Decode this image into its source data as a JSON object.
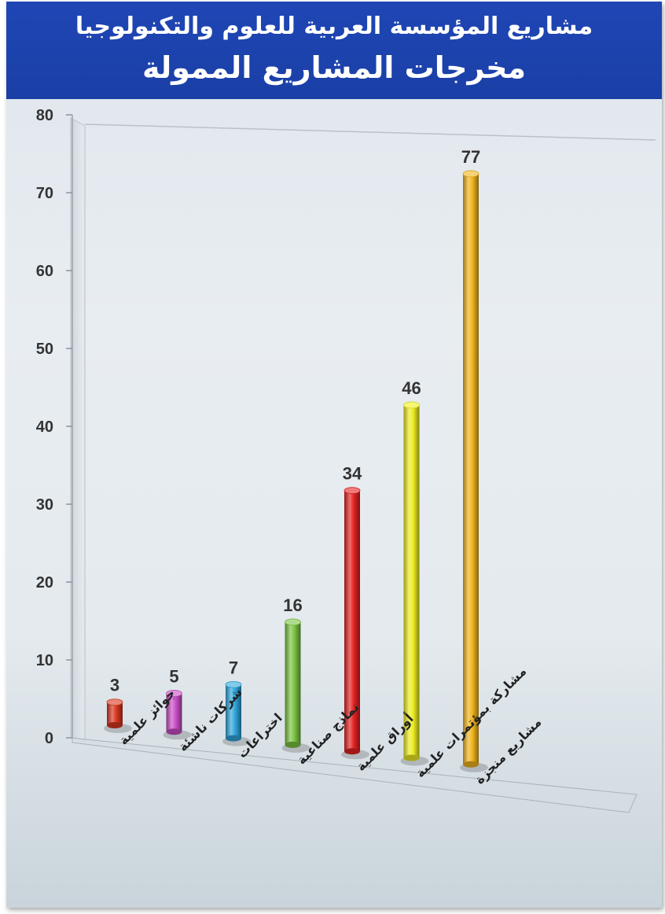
{
  "header": {
    "title": "مشاريع المؤسسة العربية للعلوم والتكنولوجيا",
    "subtitle": "مخرجات المشاريع الممولة"
  },
  "chart_data": {
    "type": "bar",
    "title": "مشاريع المؤسسة العربية للعلوم والتكنولوجيا",
    "subtitle": "مخرجات المشاريع الممولة",
    "categories": [
      "جوائز علمية",
      "شركات ناشئة",
      "اختراعات",
      "نماذج صناعية",
      "أوراق علمية",
      "مشاركة بمؤتمرات علمية",
      "مشاريع منجزة"
    ],
    "values": [
      3,
      5,
      7,
      16,
      34,
      46,
      77
    ],
    "colors": [
      "#d9361e",
      "#c94fc6",
      "#2fa6dc",
      "#7cc443",
      "#e52222",
      "#eeee22",
      "#f2b51c"
    ],
    "ylim": [
      0,
      80
    ],
    "yticks": [
      0,
      10,
      20,
      30,
      40,
      50,
      60,
      70,
      80
    ],
    "xlabel": "",
    "ylabel": "",
    "grid": false,
    "legend": "none"
  }
}
